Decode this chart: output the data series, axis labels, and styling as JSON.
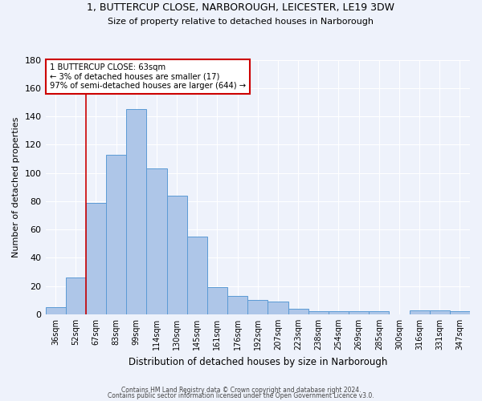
{
  "title1": "1, BUTTERCUP CLOSE, NARBOROUGH, LEICESTER, LE19 3DW",
  "title2": "Size of property relative to detached houses in Narborough",
  "xlabel": "Distribution of detached houses by size in Narborough",
  "ylabel": "Number of detached properties",
  "categories": [
    "36sqm",
    "52sqm",
    "67sqm",
    "83sqm",
    "99sqm",
    "114sqm",
    "130sqm",
    "145sqm",
    "161sqm",
    "176sqm",
    "192sqm",
    "207sqm",
    "223sqm",
    "238sqm",
    "254sqm",
    "269sqm",
    "285sqm",
    "300sqm",
    "316sqm",
    "331sqm",
    "347sqm"
  ],
  "values": [
    5,
    26,
    79,
    113,
    145,
    103,
    84,
    55,
    19,
    13,
    10,
    9,
    4,
    2,
    2,
    2,
    2,
    0,
    3,
    3,
    2
  ],
  "bar_color": "#aec6e8",
  "bar_edge_color": "#5b9bd5",
  "vline_color": "#cc0000",
  "annotation_line1": "1 BUTTERCUP CLOSE: 63sqm",
  "annotation_line2": "← 3% of detached houses are smaller (17)",
  "annotation_line3": "97% of semi-detached houses are larger (644) →",
  "annotation_box_color": "#ffffff",
  "annotation_box_edge_color": "#cc0000",
  "ylim": [
    0,
    180
  ],
  "yticks": [
    0,
    20,
    40,
    60,
    80,
    100,
    120,
    140,
    160,
    180
  ],
  "background_color": "#eef2fb",
  "grid_color": "#ffffff",
  "footer1": "Contains HM Land Registry data © Crown copyright and database right 2024.",
  "footer2": "Contains public sector information licensed under the Open Government Licence v3.0."
}
